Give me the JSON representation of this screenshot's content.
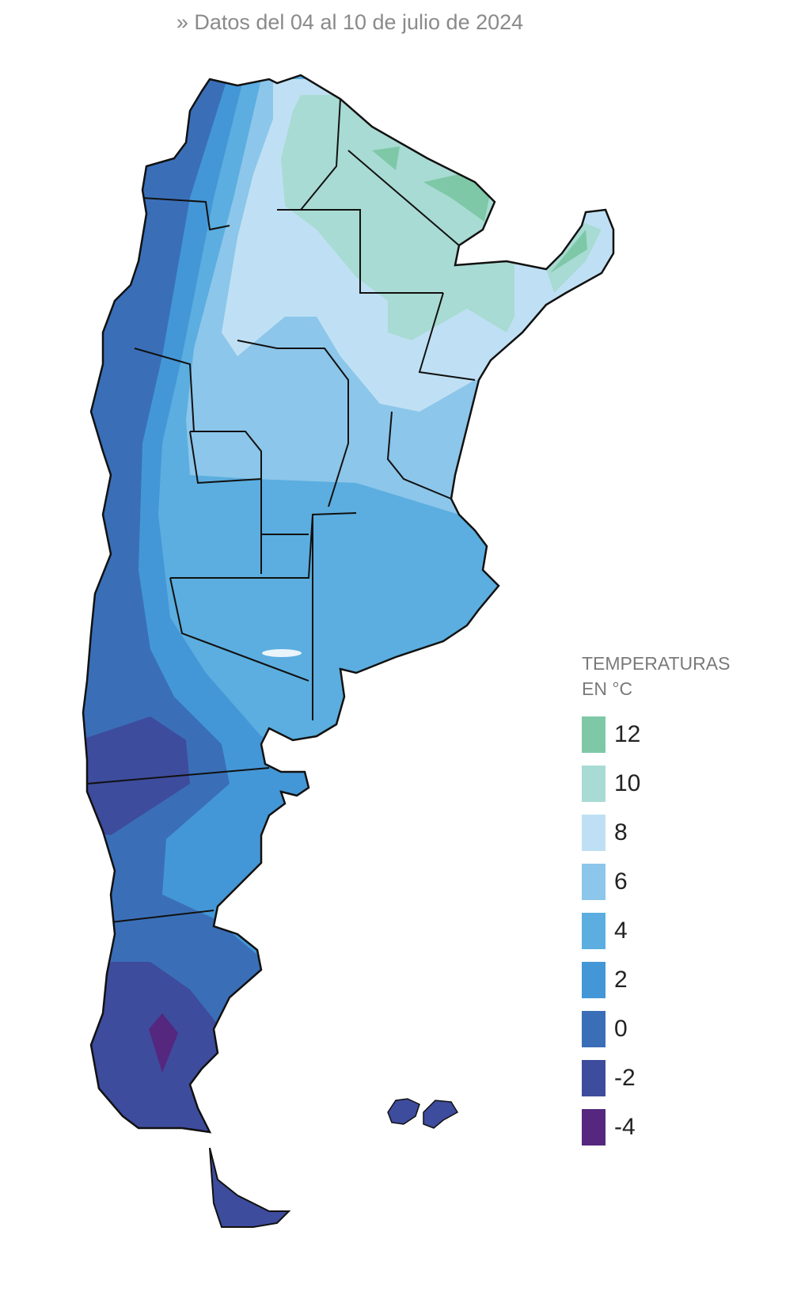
{
  "header": {
    "subtitle": "» Datos del 04 al 10 de julio de 2024"
  },
  "legend": {
    "title_lines": [
      "TEMPERATURAS",
      "EN °C"
    ],
    "items": [
      {
        "label": "12",
        "color": "#7ec8a8"
      },
      {
        "label": "10",
        "color": "#a8dbd3"
      },
      {
        "label": "8",
        "color": "#bfe0f4"
      },
      {
        "label": "6",
        "color": "#8cc6ea"
      },
      {
        "label": "4",
        "color": "#5baedf"
      },
      {
        "label": "2",
        "color": "#4497d6"
      },
      {
        "label": "0",
        "color": "#3a6fb8"
      },
      {
        "label": "-2",
        "color": "#3e4c9d"
      },
      {
        "label": "-4",
        "color": "#55277f"
      }
    ]
  }
}
